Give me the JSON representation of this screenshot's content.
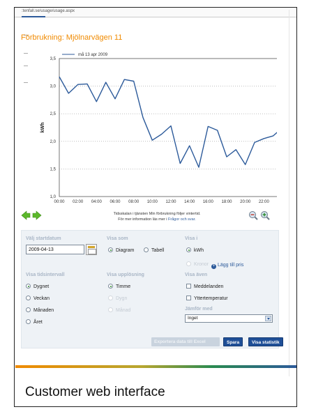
{
  "browser": {
    "url": ":tenfall.se/usage/usage.aspx"
  },
  "page_title": "Förbrukning: Mjölnarvägen 11",
  "chart_data": {
    "type": "line",
    "ylabel": "kWh",
    "xlabel": "",
    "title": "",
    "legend": "top-left",
    "grid": true,
    "ylim": [
      1.0,
      3.5
    ],
    "yticks": [
      "1,0",
      "1,5",
      "2,0",
      "2,5",
      "3,0",
      "3,5"
    ],
    "yticks_values": [
      1.0,
      1.5,
      2.0,
      2.5,
      3.0,
      3.5
    ],
    "xticks": [
      "00:00",
      "02:00",
      "04:00",
      "06:00",
      "08:00",
      "10:00",
      "12:00",
      "14:00",
      "16:00",
      "18:00",
      "20:00",
      "22:00",
      "00:00"
    ],
    "series": [
      {
        "name": "må 13 apr 2009",
        "color": "#2c5a9a",
        "values": [
          3.17,
          2.87,
          3.03,
          3.04,
          2.72,
          3.07,
          2.77,
          3.12,
          3.09,
          2.43,
          2.02,
          2.13,
          2.28,
          1.6,
          1.92,
          1.53,
          2.27,
          2.2,
          1.72,
          1.85,
          1.58,
          1.98,
          2.05,
          2.1,
          2.25
        ]
      }
    ]
  },
  "chart_note": {
    "line1": "Tidsskalan i tjänsten Min förbrukning följer vintertid.",
    "line2_prefix": "För mer information läs mer i",
    "line2_link": "Frågor och svar."
  },
  "form": {
    "startdate_label": "Välj startdatum",
    "startdate_value": "2009-04-13",
    "show_as_label": "Visa som",
    "show_as_options": [
      "Diagram",
      "Tabell"
    ],
    "show_in_label": "Visa i",
    "show_in_options": [
      "kWh",
      "Kronor"
    ],
    "add_price_label": "Lägg till pris",
    "interval_label": "Visa tidsintervall",
    "interval_options": [
      "Dygnet",
      "Veckan",
      "Månaden",
      "Året"
    ],
    "resolution_label": "Visa upplösning",
    "resolution_options": [
      "Timme",
      "Dygn",
      "Månad"
    ],
    "also_show_label": "Visa även",
    "also_show_options": [
      "Meddelanden",
      "Yttertemperatur"
    ],
    "compare_label": "Jämför med",
    "compare_value": "Inget",
    "export_button": "Exportera data till Excel",
    "save_button": "Spara",
    "stats_button": "Visa statistik"
  },
  "colors": {
    "accent": "#f08a00",
    "brand": "#2c5a9a",
    "nav_arrow": "#5cb82a"
  },
  "caption": "Customer web interface"
}
